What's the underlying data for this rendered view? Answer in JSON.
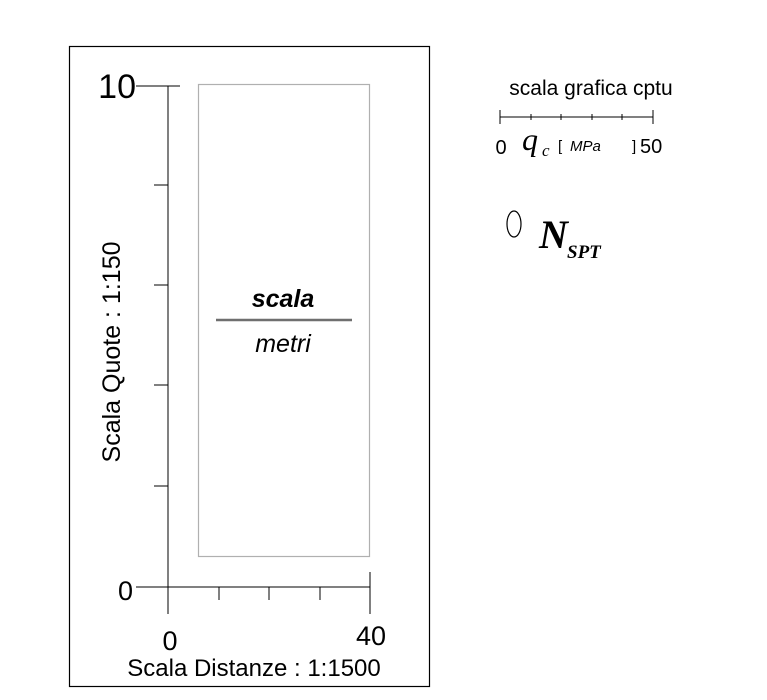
{
  "scale_box": {
    "vertical_scale_label": "Scala Quote : 1:150",
    "horizontal_scale_label": "Scala Distanze : 1:1500",
    "y_axis": {
      "top_label": "10",
      "bottom_label": "0"
    },
    "x_axis": {
      "left_label": "0",
      "right_label": "40"
    },
    "legend_box": {
      "top_text": "scala",
      "bottom_text": "metri"
    }
  },
  "cptu_scale": {
    "title": "scala grafica cptu",
    "min_label": "0",
    "max_label": "50",
    "symbol": "q",
    "symbol_sub": "c",
    "unit_open": "[",
    "unit": "MPa",
    "unit_close": "]"
  },
  "nspt": {
    "symbol": "N",
    "subscript": "SPT"
  }
}
